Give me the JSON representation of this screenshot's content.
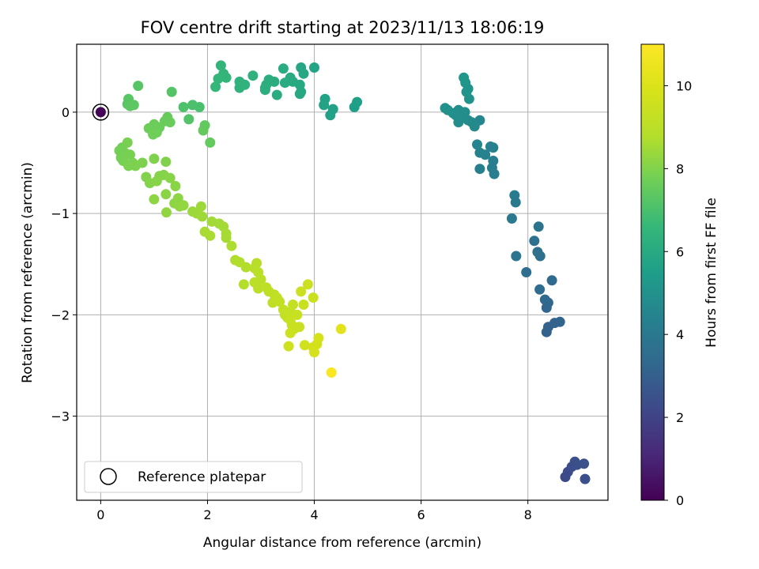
{
  "chart_data": {
    "type": "scatter",
    "title": "FOV centre drift starting at 2023/11/13 18:06:19",
    "xlabel": "Angular distance from reference (arcmin)",
    "ylabel": "Rotation from reference (arcmin)",
    "xlim": [
      -0.45,
      9.5
    ],
    "ylim": [
      -3.83,
      0.67
    ],
    "xticks": [
      0,
      2,
      4,
      6,
      8
    ],
    "yticks": [
      0,
      -1,
      -2,
      -3
    ],
    "xtick_labels": [
      "0",
      "2",
      "4",
      "6",
      "8"
    ],
    "ytick_labels": [
      "0",
      "−1",
      "−2",
      "−3"
    ],
    "grid": true,
    "legend": {
      "position": "lower-left",
      "entries": [
        "Reference platepar"
      ]
    },
    "reference_point": {
      "x": 0,
      "y": 0
    },
    "colorbar": {
      "label": "Hours from first FF file",
      "colormap": "viridis",
      "range": [
        0,
        11
      ],
      "ticks": [
        0,
        2,
        4,
        6,
        8,
        10
      ],
      "tick_labels": [
        "0",
        "2",
        "4",
        "6",
        "8",
        "10"
      ]
    },
    "points": [
      [
        0.0,
        0.0,
        0.1
      ],
      [
        8.75,
        -3.55,
        2.3
      ],
      [
        8.82,
        -3.5,
        2.35
      ],
      [
        8.88,
        -3.45,
        2.4
      ],
      [
        8.7,
        -3.6,
        2.25
      ],
      [
        9.05,
        -3.47,
        2.5
      ],
      [
        9.07,
        -3.62,
        2.45
      ],
      [
        8.92,
        -3.48,
        2.42
      ],
      [
        8.6,
        -2.07,
        3.2
      ],
      [
        8.5,
        -2.08,
        3.15
      ],
      [
        8.35,
        -2.17,
        3.1
      ],
      [
        8.38,
        -2.12,
        3.12
      ],
      [
        8.38,
        -1.88,
        3.3
      ],
      [
        8.32,
        -1.85,
        3.35
      ],
      [
        8.35,
        -1.93,
        3.28
      ],
      [
        8.45,
        -1.66,
        3.4
      ],
      [
        8.22,
        -1.75,
        3.45
      ],
      [
        8.23,
        -1.42,
        3.6
      ],
      [
        8.18,
        -1.38,
        3.65
      ],
      [
        7.97,
        -1.58,
        3.55
      ],
      [
        8.12,
        -1.27,
        3.7
      ],
      [
        8.2,
        -1.13,
        3.8
      ],
      [
        7.78,
        -1.42,
        3.9
      ],
      [
        7.7,
        -1.05,
        4.0
      ],
      [
        7.75,
        -0.82,
        4.1
      ],
      [
        7.77,
        -0.89,
        4.05
      ],
      [
        7.35,
        -0.35,
        4.3
      ],
      [
        7.3,
        -0.34,
        4.35
      ],
      [
        7.35,
        -0.48,
        4.25
      ],
      [
        7.37,
        -0.61,
        4.2
      ],
      [
        7.33,
        -0.55,
        4.22
      ],
      [
        7.1,
        -0.56,
        4.28
      ],
      [
        7.2,
        -0.42,
        4.4
      ],
      [
        7.1,
        -0.4,
        4.45
      ],
      [
        7.05,
        -0.32,
        4.5
      ],
      [
        7.1,
        -0.08,
        4.6
      ],
      [
        7.0,
        -0.14,
        4.65
      ],
      [
        6.95,
        -0.1,
        4.7
      ],
      [
        6.88,
        -0.08,
        4.75
      ],
      [
        6.8,
        -0.05,
        4.8
      ],
      [
        6.75,
        -0.02,
        4.85
      ],
      [
        6.7,
        0.02,
        4.9
      ],
      [
        6.65,
        -0.03,
        4.88
      ],
      [
        6.6,
        -0.01,
        4.92
      ],
      [
        6.5,
        0.02,
        4.95
      ],
      [
        6.45,
        0.04,
        5.0
      ],
      [
        6.7,
        -0.1,
        4.82
      ],
      [
        6.75,
        0.0,
        4.86
      ],
      [
        6.82,
        0.0,
        4.84
      ],
      [
        6.9,
        0.13,
        5.05
      ],
      [
        6.85,
        0.2,
        5.1
      ],
      [
        6.88,
        0.23,
        5.12
      ],
      [
        6.83,
        0.29,
        5.15
      ],
      [
        6.8,
        0.34,
        5.2
      ],
      [
        4.8,
        0.1,
        5.6
      ],
      [
        4.75,
        0.05,
        5.55
      ],
      [
        4.35,
        0.03,
        5.65
      ],
      [
        4.3,
        -0.03,
        5.62
      ],
      [
        4.2,
        0.13,
        5.7
      ],
      [
        4.18,
        0.07,
        5.68
      ],
      [
        4.0,
        0.44,
        5.8
      ],
      [
        3.75,
        0.44,
        5.85
      ],
      [
        3.8,
        0.38,
        5.9
      ],
      [
        3.73,
        0.27,
        5.95
      ],
      [
        3.75,
        0.2,
        5.92
      ],
      [
        3.73,
        0.18,
        5.96
      ],
      [
        3.6,
        0.3,
        6.0
      ],
      [
        3.55,
        0.34,
        6.02
      ],
      [
        3.42,
        0.43,
        6.05
      ],
      [
        3.45,
        0.29,
        6.08
      ],
      [
        3.3,
        0.17,
        6.1
      ],
      [
        3.25,
        0.3,
        6.12
      ],
      [
        3.15,
        0.32,
        6.15
      ],
      [
        3.1,
        0.27,
        6.18
      ],
      [
        3.08,
        0.22,
        6.2
      ],
      [
        3.08,
        0.24,
        6.22
      ],
      [
        2.85,
        0.36,
        6.3
      ],
      [
        2.7,
        0.27,
        6.35
      ],
      [
        2.6,
        0.3,
        6.38
      ],
      [
        2.6,
        0.24,
        6.4
      ],
      [
        2.35,
        0.34,
        6.45
      ],
      [
        2.25,
        0.46,
        6.5
      ],
      [
        2.3,
        0.38,
        6.52
      ],
      [
        2.2,
        0.33,
        6.55
      ],
      [
        2.15,
        0.25,
        6.58
      ],
      [
        1.85,
        0.05,
        7.0
      ],
      [
        1.72,
        0.07,
        7.05
      ],
      [
        1.55,
        0.05,
        7.1
      ],
      [
        1.65,
        -0.07,
        7.15
      ],
      [
        1.33,
        0.2,
        7.2
      ],
      [
        0.7,
        0.26,
        7.25
      ],
      [
        0.52,
        0.13,
        7.3
      ],
      [
        0.5,
        0.08,
        7.32
      ],
      [
        0.55,
        0.06,
        7.35
      ],
      [
        0.62,
        0.07,
        7.37
      ],
      [
        1.95,
        -0.13,
        7.45
      ],
      [
        1.92,
        -0.18,
        7.48
      ],
      [
        2.05,
        -0.3,
        7.5
      ],
      [
        1.25,
        -0.05,
        7.55
      ],
      [
        1.2,
        -0.09,
        7.58
      ],
      [
        1.3,
        -0.1,
        7.6
      ],
      [
        1.1,
        -0.15,
        7.62
      ],
      [
        1.0,
        -0.12,
        7.64
      ],
      [
        0.9,
        -0.16,
        7.66
      ],
      [
        1.05,
        -0.2,
        7.68
      ],
      [
        0.98,
        -0.22,
        7.7
      ],
      [
        0.4,
        -0.35,
        7.75
      ],
      [
        0.35,
        -0.38,
        7.77
      ],
      [
        0.45,
        -0.4,
        7.79
      ],
      [
        0.38,
        -0.45,
        7.8
      ],
      [
        0.42,
        -0.48,
        7.82
      ],
      [
        0.5,
        -0.3,
        7.84
      ],
      [
        0.55,
        -0.42,
        7.86
      ],
      [
        0.6,
        -0.5,
        7.88
      ],
      [
        0.52,
        -0.53,
        7.9
      ],
      [
        0.78,
        -0.5,
        7.92
      ],
      [
        0.65,
        -0.53,
        7.94
      ],
      [
        1.0,
        -0.46,
        7.96
      ],
      [
        1.22,
        -0.49,
        7.98
      ],
      [
        0.85,
        -0.64,
        8.0
      ],
      [
        0.92,
        -0.7,
        8.02
      ],
      [
        1.1,
        -0.63,
        8.04
      ],
      [
        1.18,
        -0.62,
        8.06
      ],
      [
        1.05,
        -0.68,
        8.08
      ],
      [
        1.3,
        -0.65,
        8.1
      ],
      [
        1.4,
        -0.73,
        8.12
      ],
      [
        1.22,
        -0.81,
        8.14
      ],
      [
        1.0,
        -0.86,
        8.16
      ],
      [
        1.45,
        -0.85,
        8.18
      ],
      [
        1.38,
        -0.9,
        8.2
      ],
      [
        1.48,
        -0.93,
        8.22
      ],
      [
        1.23,
        -0.99,
        8.24
      ],
      [
        1.55,
        -0.92,
        8.26
      ],
      [
        1.72,
        -0.98,
        8.4
      ],
      [
        1.8,
        -1.0,
        8.42
      ],
      [
        1.88,
        -0.93,
        8.44
      ],
      [
        1.9,
        -1.03,
        8.46
      ],
      [
        2.08,
        -1.08,
        8.5
      ],
      [
        2.22,
        -1.1,
        8.52
      ],
      [
        2.3,
        -1.13,
        8.54
      ],
      [
        2.35,
        -1.2,
        8.56
      ],
      [
        2.35,
        -1.24,
        8.58
      ],
      [
        1.95,
        -1.18,
        8.6
      ],
      [
        2.05,
        -1.22,
        8.62
      ],
      [
        2.45,
        -1.32,
        8.7
      ],
      [
        2.52,
        -1.46,
        8.72
      ],
      [
        2.6,
        -1.48,
        8.74
      ],
      [
        2.72,
        -1.53,
        8.76
      ],
      [
        2.68,
        -1.7,
        8.78
      ],
      [
        2.88,
        -1.54,
        8.9
      ],
      [
        2.92,
        -1.49,
        8.92
      ],
      [
        2.95,
        -1.58,
        8.94
      ],
      [
        2.88,
        -1.68,
        8.96
      ],
      [
        2.95,
        -1.74,
        8.98
      ],
      [
        3.0,
        -1.65,
        9.0
      ],
      [
        3.1,
        -1.73,
        9.05
      ],
      [
        3.15,
        -1.77,
        9.08
      ],
      [
        3.25,
        -1.8,
        9.1
      ],
      [
        3.22,
        -1.88,
        9.12
      ],
      [
        3.3,
        -1.83,
        9.14
      ],
      [
        3.35,
        -1.87,
        9.2
      ],
      [
        3.42,
        -1.95,
        9.22
      ],
      [
        3.45,
        -2.0,
        9.24
      ],
      [
        3.5,
        -2.03,
        9.26
      ],
      [
        3.55,
        -1.97,
        9.28
      ],
      [
        3.6,
        -1.9,
        9.3
      ],
      [
        3.55,
        -2.05,
        9.32
      ],
      [
        3.58,
        -2.1,
        9.34
      ],
      [
        3.68,
        -2.0,
        9.36
      ],
      [
        3.62,
        -2.14,
        9.38
      ],
      [
        3.72,
        -2.12,
        9.4
      ],
      [
        3.8,
        -1.9,
        9.42
      ],
      [
        3.75,
        -1.77,
        9.45
      ],
      [
        3.88,
        -1.7,
        9.48
      ],
      [
        3.98,
        -1.83,
        9.5
      ],
      [
        3.55,
        -2.18,
        9.52
      ],
      [
        3.52,
        -2.31,
        9.6
      ],
      [
        3.82,
        -2.3,
        9.65
      ],
      [
        3.98,
        -2.32,
        9.7
      ],
      [
        4.05,
        -2.29,
        9.75
      ],
      [
        4.0,
        -2.37,
        9.8
      ],
      [
        4.08,
        -2.23,
        9.82
      ],
      [
        4.5,
        -2.14,
        10.2
      ],
      [
        4.32,
        -2.57,
        10.9
      ]
    ]
  }
}
